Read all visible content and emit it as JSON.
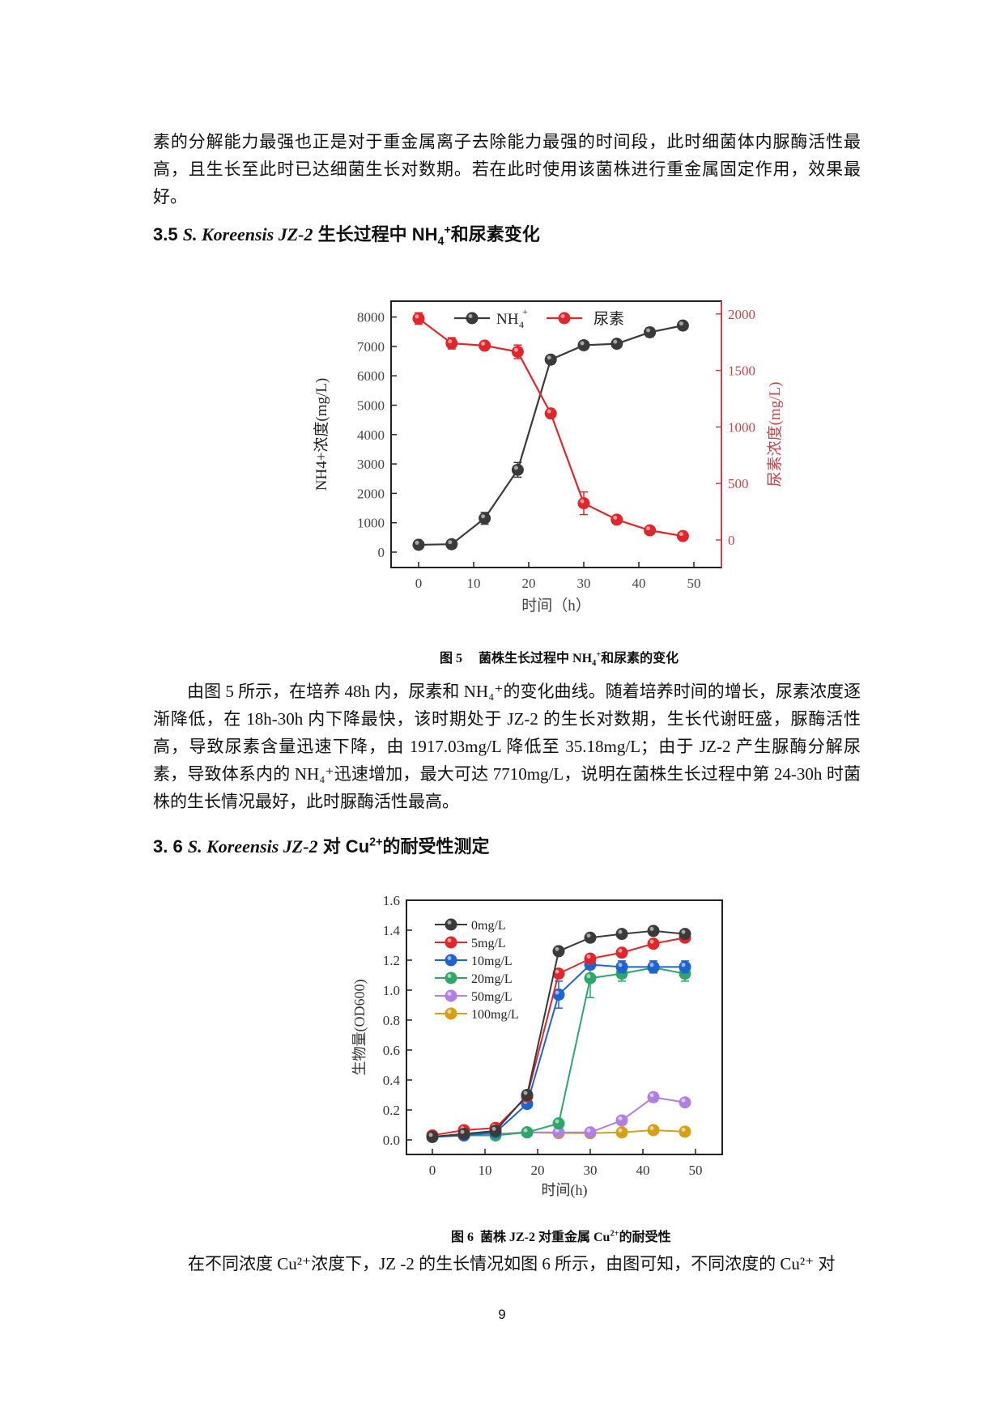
{
  "page": {
    "intro_lines": "素的分解能力最强也正是对于重金属离子去除能力最强的时间段，此时细菌体内脲酶活性最高，且生长至此时已达细菌生长对数期。若在此时使用该菌株进行重金属固定作用，效果最好。",
    "section_35": {
      "number": "3.5",
      "species": "S. Koreensis JZ-2",
      "title_pre": " 生长过程中 NH",
      "sub": "4",
      "sup": "+",
      "title_post": "和尿素变化"
    },
    "figure5_caption": {
      "label": "图 5",
      "text_pre": "菌株生长过程中 NH",
      "sub": "4",
      "sup": "+",
      "text_post": "和尿素的变化"
    },
    "paragraph_35": "由图 5 所示，在培养 48h 内，尿素和 NH₄⁺的变化曲线。随着培养时间的增长，尿素浓度逐渐降低，在 18h-30h 内下降最快，该时期处于 JZ-2 的生长对数期，生长代谢旺盛，脲酶活性高，导致尿素含量迅速下降，由 1917.03mg/L 降低至 35.18mg/L；由于 JZ-2 产生脲酶分解尿素，导致体系内的 NH₄⁺迅速增加，最大可达 7710mg/L，说明在菌株生长过程中第 24-30h 时菌株的生长情况最好，此时脲酶活性最高。",
    "section_36": {
      "number": "3. 6",
      "species": "S. Koreensis JZ-2",
      "title_pre": " 对 Cu",
      "sup": "2+",
      "title_post": "的耐受性测定"
    },
    "figure6_caption": {
      "text_pre": "图 6  菌株 JZ-2 对重金属 Cu",
      "sup": "2+",
      "text_post": "的耐受性"
    },
    "paragraph_36": "在不同浓度 Cu²⁺浓度下，JZ -2 的生长情况如图 6 所示，由图可知，不同浓度的  Cu²⁺  对",
    "page_number": "9"
  },
  "chart_data": [
    {
      "type": "line",
      "title": "",
      "xlabel": "时间（h）",
      "ylabel": "NH4+浓度(mg/L)",
      "y2label": "尿素浓度(mg/L)",
      "x": [
        0,
        6,
        12,
        18,
        24,
        30,
        36,
        42,
        48
      ],
      "xticks": [
        0,
        10,
        20,
        30,
        40,
        50
      ],
      "yticks": [
        0,
        1000,
        2000,
        3000,
        4000,
        5000,
        6000,
        7000,
        8000
      ],
      "y2ticks": [
        0,
        500,
        1000,
        1500,
        2000
      ],
      "ylim": [
        -500,
        8500
      ],
      "y2lim": [
        -250,
        2250
      ],
      "xlim": [
        -5,
        55
      ],
      "legend_position": "top",
      "series": [
        {
          "name": "NH4+",
          "axis": "left",
          "color": "#3a3a3a",
          "values": [
            250,
            270,
            1150,
            2800,
            6550,
            7040,
            7090,
            7480,
            7710
          ],
          "errors": [
            60,
            60,
            200,
            250,
            80,
            80,
            80,
            150,
            80
          ]
        },
        {
          "name": "尿素",
          "axis": "right",
          "color": "#e0262b",
          "values": [
            1960,
            1740,
            1720,
            1665,
            1120,
            325,
            180,
            85,
            35
          ],
          "errors": [
            50,
            50,
            35,
            60,
            30,
            100,
            30,
            25,
            20
          ]
        }
      ]
    },
    {
      "type": "line",
      "title": "",
      "xlabel": "时间(h)",
      "ylabel": "生物量(OD600)",
      "x": [
        0,
        6,
        12,
        18,
        24,
        30,
        36,
        42,
        48
      ],
      "xticks": [
        0,
        10,
        20,
        30,
        40,
        50
      ],
      "yticks": [
        0.0,
        0.2,
        0.4,
        0.6,
        0.8,
        1.0,
        1.2,
        1.4,
        1.6
      ],
      "ylim": [
        -0.1,
        1.6
      ],
      "xlim": [
        -5,
        55
      ],
      "legend_position": "upper left",
      "series": [
        {
          "name": "0mg/L",
          "color": "#3a3a3a",
          "values": [
            0.02,
            0.04,
            0.06,
            0.3,
            1.26,
            1.35,
            1.375,
            1.395,
            1.375
          ],
          "errors": [
            0,
            0,
            0,
            0.01,
            0.01,
            0.01,
            0.01,
            0.01,
            0.01
          ]
        },
        {
          "name": "5mg/L",
          "color": "#e0262b",
          "values": [
            0.03,
            0.065,
            0.08,
            0.29,
            1.11,
            1.21,
            1.25,
            1.31,
            1.35
          ],
          "errors": [
            0,
            0.01,
            0.01,
            0.01,
            0.02,
            0.01,
            0.01,
            0.01,
            0.02
          ]
        },
        {
          "name": "10mg/L",
          "color": "#1f63d1",
          "values": [
            0.02,
            0.03,
            0.05,
            0.24,
            0.97,
            1.17,
            1.155,
            1.155,
            1.155
          ],
          "errors": [
            0,
            0,
            0,
            0.01,
            0.09,
            0.03,
            0.04,
            0.04,
            0.04
          ]
        },
        {
          "name": "20mg/L",
          "color": "#2ea56a",
          "values": [
            0.02,
            0.03,
            0.03,
            0.05,
            0.11,
            1.08,
            1.11,
            1.15,
            1.11
          ],
          "errors": [
            0,
            0,
            0,
            0,
            0.01,
            0.13,
            0.05,
            0.03,
            0.05
          ]
        },
        {
          "name": "50mg/L",
          "color": "#b07fe0",
          "values": [
            0.02,
            0.03,
            0.04,
            0.05,
            0.05,
            0.05,
            0.13,
            0.285,
            0.25
          ],
          "errors": [
            0,
            0,
            0,
            0,
            0,
            0,
            0.01,
            0.03,
            0.01
          ]
        },
        {
          "name": "100mg/L",
          "color": "#d4a017",
          "values": [
            0.02,
            0.04,
            0.04,
            0.05,
            0.045,
            0.045,
            0.05,
            0.065,
            0.055
          ],
          "errors": [
            0,
            0,
            0,
            0,
            0,
            0,
            0,
            0.01,
            0
          ]
        }
      ]
    }
  ]
}
